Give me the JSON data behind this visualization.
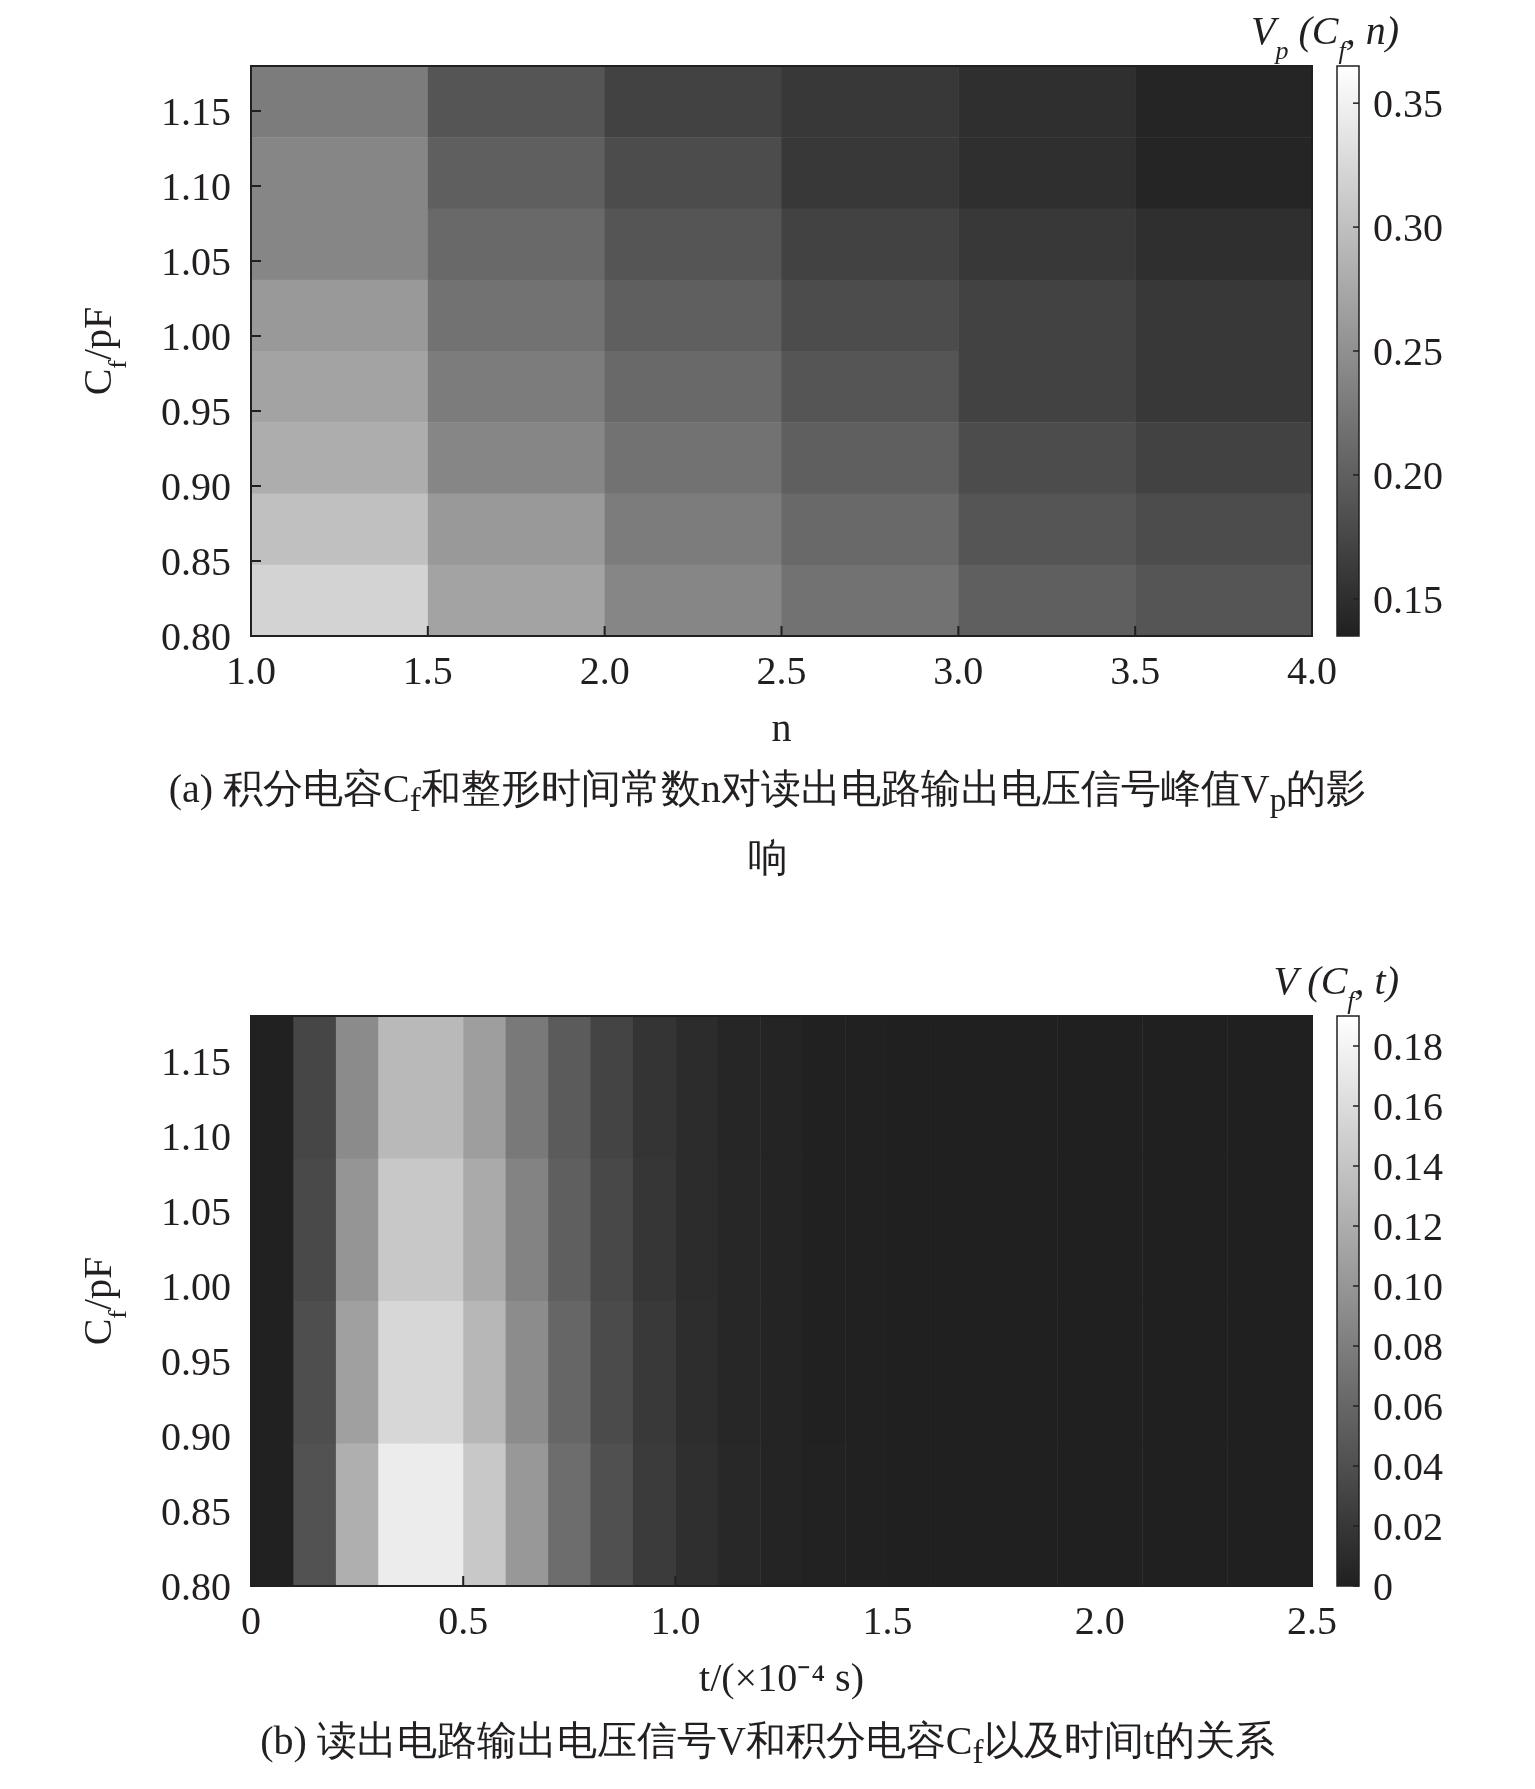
{
  "chart_data": [
    {
      "type": "heatmap",
      "xlabel": "n",
      "ylabel": "C$_{f}$/pF",
      "clabel": "V$_{p}$ (C$_{f}$, n)",
      "xlim": [
        1,
        4
      ],
      "ylim": [
        0.8,
        1.18
      ],
      "xticks": [
        {
          "value": 1,
          "label": "1.0"
        },
        1.5,
        {
          "value": 2,
          "label": "2.0"
        },
        2.5,
        {
          "value": 3,
          "label": "3.0"
        },
        3.5,
        {
          "value": 4,
          "label": "4.0"
        }
      ],
      "yticks": [
        {
          "value": 0.8,
          "label": "0.80"
        },
        0.85,
        {
          "value": 0.9,
          "label": "0.90"
        },
        0.95,
        {
          "value": 1,
          "label": "1.00"
        },
        1.05,
        {
          "value": 1.1,
          "label": "1.10"
        },
        1.15
      ],
      "clim": [
        0.135,
        0.365
      ],
      "cticks": [
        0.15,
        {
          "value": 0.2,
          "label": "0.20"
        },
        0.25,
        {
          "value": 0.3,
          "label": "0.30"
        },
        0.35
      ],
      "cells": [
        [
          0.23,
          0.19,
          0.17,
          0.16,
          0.15,
          0.14
        ],
        [
          0.24,
          0.2,
          0.18,
          0.16,
          0.15,
          0.14
        ],
        [
          0.24,
          0.21,
          0.19,
          0.17,
          0.16,
          0.15
        ],
        [
          0.26,
          0.22,
          0.2,
          0.18,
          0.17,
          0.16
        ],
        [
          0.27,
          0.23,
          0.21,
          0.19,
          0.17,
          0.16
        ],
        [
          0.28,
          0.24,
          0.22,
          0.2,
          0.18,
          0.17
        ],
        [
          0.3,
          0.26,
          0.23,
          0.21,
          0.19,
          0.18
        ],
        [
          0.32,
          0.27,
          0.24,
          0.22,
          0.2,
          0.19
        ]
      ],
      "annotations": [
        "(a) 积分电容C$_{f}$和整形时间常数n对读出电路输出电压信号峰值V$_{p}$的影响"
      ]
    },
    {
      "type": "heatmap",
      "xlabel": "t/(×10⁻⁴ s)",
      "ylabel": "C$_{f}$/pF",
      "clabel": "V (C$_{f}$, t)",
      "xlim": [
        0,
        2.5
      ],
      "ylim": [
        0.8,
        1.18
      ],
      "xticks": [
        0,
        0.5,
        {
          "value": 1,
          "label": "1.0"
        },
        1.5,
        {
          "value": 2,
          "label": "2.0"
        },
        2.5
      ],
      "yticks": [
        {
          "value": 0.8,
          "label": "0.80"
        },
        0.85,
        {
          "value": 0.9,
          "label": "0.90"
        },
        0.95,
        {
          "value": 1,
          "label": "1.00"
        },
        1.05,
        {
          "value": 1.1,
          "label": "1.10"
        },
        1.15
      ],
      "clim": [
        0,
        0.19
      ],
      "cticks": [
        0,
        0.02,
        0.04,
        0.06,
        0.08,
        {
          "value": 0.1,
          "label": "0.10"
        },
        0.12,
        0.14,
        0.16,
        0.18
      ],
      "cells": [
        [
          0.001,
          0.032,
          0.091,
          0.13,
          0.13,
          0.107,
          0.076,
          0.05,
          0.031,
          0.017,
          0.01,
          0.005,
          0.003,
          0.001,
          0.001,
          0,
          0,
          0,
          0,
          0,
          0,
          0,
          0,
          0,
          0
        ],
        [
          0.001,
          0.035,
          0.1,
          0.143,
          0.143,
          0.118,
          0.084,
          0.054,
          0.034,
          0.019,
          0.01,
          0.006,
          0.003,
          0.001,
          0.001,
          0,
          0,
          0,
          0,
          0,
          0,
          0,
          0,
          0,
          0
        ],
        [
          0.001,
          0.039,
          0.109,
          0.156,
          0.156,
          0.129,
          0.092,
          0.06,
          0.037,
          0.021,
          0.011,
          0.006,
          0.003,
          0.001,
          0.001,
          0,
          0,
          0,
          0,
          0,
          0,
          0,
          0,
          0,
          0
        ],
        [
          0.001,
          0.043,
          0.122,
          0.174,
          0.174,
          0.143,
          0.102,
          0.066,
          0.041,
          0.023,
          0.013,
          0.007,
          0.003,
          0.002,
          0.001,
          0,
          0,
          0,
          0,
          0,
          0,
          0,
          0,
          0,
          0
        ]
      ],
      "annotations": [
        "(b) 读出电路输出电压信号V和积分电容C$_{f}$以及时间t的关系"
      ]
    }
  ]
}
